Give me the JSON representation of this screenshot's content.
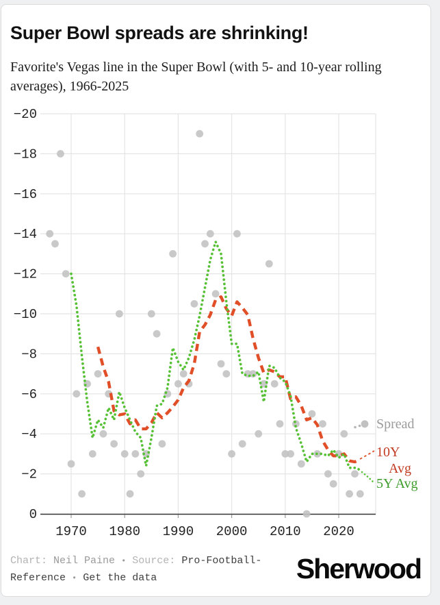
{
  "chart_data": {
    "type": "scatter",
    "title": "Super Bowl spreads are shrinking!",
    "subtitle": "Favorite's Vegas line in the Super Bowl (with 5- and 10-year rolling averages), 1966-2025",
    "x_axis": {
      "ticks": [
        1970,
        1980,
        1990,
        2000,
        2010,
        2020
      ],
      "labels": [
        "1970",
        "1980",
        "1990",
        "2000",
        "2010",
        "2020"
      ],
      "range": [
        1964.3,
        2026.9
      ]
    },
    "y_axis": {
      "ticks": [
        -20,
        -18,
        -16,
        -14,
        -12,
        -10,
        -8,
        -6,
        -4,
        -2,
        0
      ],
      "labels": [
        "−20",
        "−18",
        "−16",
        "−14",
        "−12",
        "−10",
        "−8",
        "−6",
        "−4",
        "−2",
        "0"
      ],
      "range": [
        0,
        -20
      ]
    },
    "grid": true,
    "legend_position": "right-edge-direct-labels",
    "series": [
      {
        "id": "spread",
        "label": "Spread",
        "type": "scatter",
        "color": "#c1c1c1",
        "label_color": "#9b9b9b"
      },
      {
        "id": "avg10",
        "label": "10Y Avg",
        "label_lines": [
          "10Y",
          "Avg"
        ],
        "type": "line",
        "dash": "dashed",
        "color": "#e04f28",
        "label_color": "#c23b22",
        "rolling_window": 10,
        "plotted_from": 1975
      },
      {
        "id": "avg5",
        "label": "5Y Avg",
        "label_lines": [
          "5Y Avg"
        ],
        "type": "line",
        "dash": "dotted",
        "color": "#56c134",
        "label_color": "#3d9d2b",
        "rolling_window": 5,
        "plotted_from": 1970
      }
    ],
    "points": [
      [
        1966,
        -14
      ],
      [
        1967,
        -13.5
      ],
      [
        1968,
        -18
      ],
      [
        1969,
        -12
      ],
      [
        1970,
        -2.5
      ],
      [
        1971,
        -6
      ],
      [
        1972,
        -1
      ],
      [
        1973,
        -6.5
      ],
      [
        1974,
        -3
      ],
      [
        1975,
        -7
      ],
      [
        1976,
        -4
      ],
      [
        1977,
        -6
      ],
      [
        1978,
        -3.5
      ],
      [
        1979,
        -10
      ],
      [
        1980,
        -3
      ],
      [
        1981,
        -1
      ],
      [
        1982,
        -3
      ],
      [
        1983,
        -2
      ],
      [
        1984,
        -3
      ],
      [
        1985,
        -10
      ],
      [
        1986,
        -9
      ],
      [
        1987,
        -3.5
      ],
      [
        1988,
        -6
      ],
      [
        1989,
        -13
      ],
      [
        1990,
        -6.5
      ],
      [
        1991,
        -7
      ],
      [
        1992,
        -6.5
      ],
      [
        1993,
        -10.5
      ],
      [
        1994,
        -19
      ],
      [
        1995,
        -13.5
      ],
      [
        1996,
        -14
      ],
      [
        1997,
        -11
      ],
      [
        1998,
        -7.5
      ],
      [
        1999,
        -7
      ],
      [
        2000,
        -3
      ],
      [
        2001,
        -14
      ],
      [
        2002,
        -3.5
      ],
      [
        2003,
        -7
      ],
      [
        2004,
        -7
      ],
      [
        2005,
        -4
      ],
      [
        2006,
        -6.5
      ],
      [
        2007,
        -12.5
      ],
      [
        2008,
        -6.5
      ],
      [
        2009,
        -4.5
      ],
      [
        2010,
        -3
      ],
      [
        2011,
        -3
      ],
      [
        2012,
        -4.5
      ],
      [
        2013,
        -2.5
      ],
      [
        2014,
        0
      ],
      [
        2015,
        -5
      ],
      [
        2016,
        -3
      ],
      [
        2017,
        -4.5
      ],
      [
        2018,
        -2
      ],
      [
        2019,
        -1.5
      ],
      [
        2020,
        -3
      ],
      [
        2021,
        -4
      ],
      [
        2022,
        -1
      ],
      [
        2023,
        -2
      ],
      [
        2024,
        -1
      ]
    ]
  },
  "footer": {
    "credit_label": "Chart:",
    "credit_name": "Neil Paine",
    "sep": "•",
    "source_label": "Source:",
    "source_name": "Pro-Football-Reference",
    "cta": "Get the data"
  },
  "brand": {
    "logo_text": "Sherwood"
  },
  "colors": {
    "spread_dot": "#c1c1c1",
    "avg10_line": "#e04f28",
    "avg5_line": "#56c134",
    "gridline": "#e4e4e4",
    "axis": "#333333",
    "tick_text": "#222222"
  }
}
